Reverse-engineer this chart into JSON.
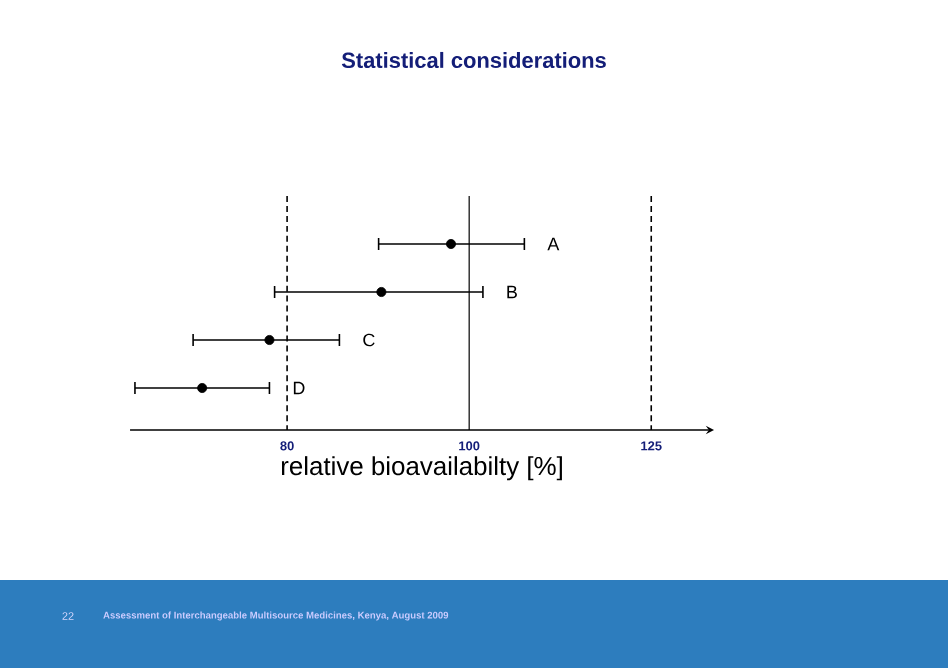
{
  "chart_data": {
    "type": "scatter",
    "orientation": "horizontal",
    "title": "Statistical considerations",
    "xlabel": "relative bioavailabilty [%]",
    "categories": [
      "A",
      "B",
      "C",
      "D"
    ],
    "values": [
      97.8,
      89.8,
      78.3,
      72.1
    ],
    "errors": [
      [
        89.5,
        107.0
      ],
      [
        78.8,
        101.7
      ],
      [
        71.3,
        85.3
      ],
      [
        66.4,
        78.3
      ]
    ],
    "color": "#000000",
    "marker": "circle",
    "log": "x",
    "tick_labels": "x",
    "xlim": [
      66,
      135
    ],
    "xticks": [
      80,
      100,
      125
    ],
    "ref_lines": [
      {
        "axis": "x",
        "value": 80,
        "line_style": "dashed"
      },
      {
        "axis": "x",
        "value": 100,
        "line_style": "solid"
      },
      {
        "axis": "x",
        "value": 125,
        "line_style": "dashed"
      }
    ],
    "annotations": [
      "22",
      "Assessment of Interchangeable Multisource Medicines,  Kenya, August  2009"
    ]
  }
}
